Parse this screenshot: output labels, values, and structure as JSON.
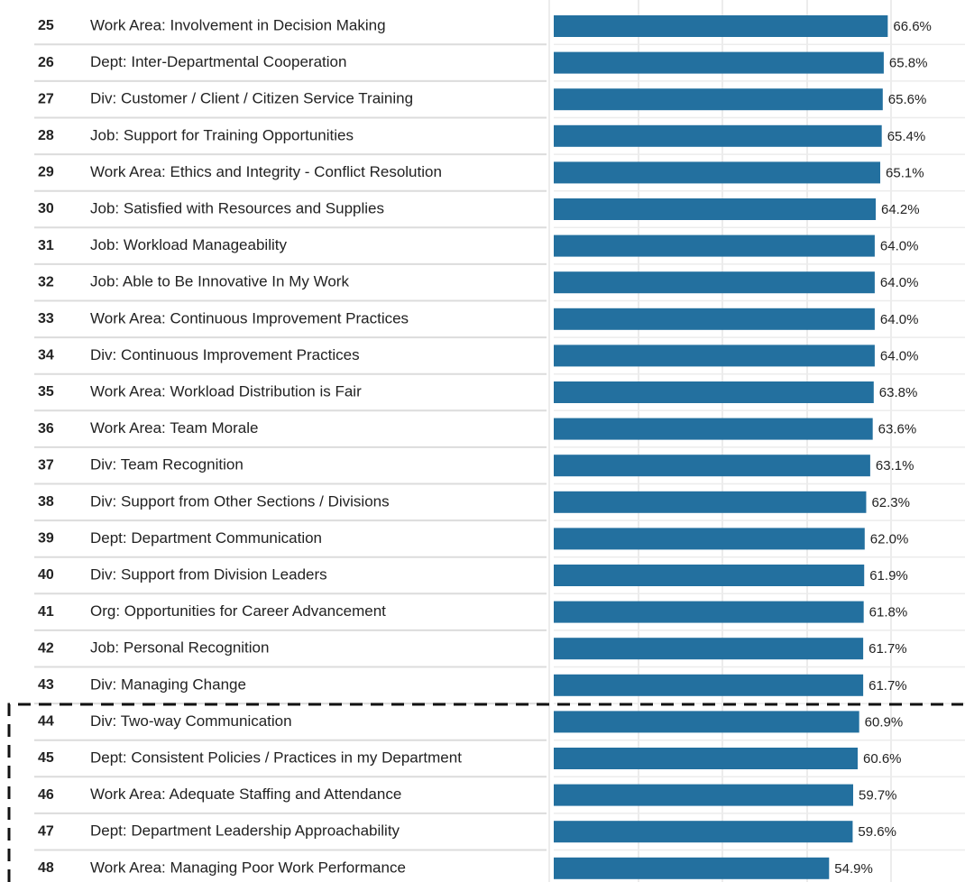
{
  "chart_data": {
    "type": "bar",
    "orientation": "horizontal",
    "color": "#23709f",
    "ranks": [
      "25",
      "26",
      "27",
      "28",
      "29",
      "30",
      "31",
      "32",
      "33",
      "34",
      "35",
      "36",
      "37",
      "38",
      "39",
      "40",
      "41",
      "42",
      "43",
      "44",
      "45",
      "46",
      "47",
      "48"
    ],
    "categories": [
      "Work Area: Involvement in Decision Making",
      "Dept: Inter-Departmental Cooperation",
      "Div: Customer / Client / Citizen Service Training",
      "Job: Support for Training Opportunities",
      "Work Area: Ethics and Integrity - Conflict Resolution",
      "Job: Satisfied with Resources and Supplies",
      "Job: Workload Manageability",
      "Job: Able to Be Innovative In My Work",
      "Work Area: Continuous Improvement Practices",
      "Div: Continuous Improvement Practices",
      "Work Area: Workload Distribution is Fair",
      "Work Area: Team Morale",
      "Div: Team Recognition",
      "Div: Support from Other Sections / Divisions",
      "Dept: Department Communication",
      "Div: Support from Division Leaders",
      "Org: Opportunities for Career Advancement",
      "Job: Personal Recognition",
      "Div: Managing Change",
      "Div: Two-way Communication",
      "Dept: Consistent Policies / Practices in my Department",
      "Work Area: Adequate Staffing and Attendance",
      "Dept: Department Leadership Approachability",
      "Work Area: Managing Poor Work Performance"
    ],
    "values": [
      66.6,
      65.8,
      65.6,
      65.4,
      65.1,
      64.2,
      64.0,
      64.0,
      64.0,
      64.0,
      63.8,
      63.6,
      63.1,
      62.3,
      62.0,
      61.9,
      61.8,
      61.7,
      61.7,
      60.9,
      60.6,
      59.7,
      59.6,
      54.9
    ],
    "value_labels": [
      "66.6%",
      "65.8%",
      "65.6%",
      "65.4%",
      "65.1%",
      "64.2%",
      "64.0%",
      "64.0%",
      "64.0%",
      "64.0%",
      "63.8%",
      "63.6%",
      "63.1%",
      "62.3%",
      "62.0%",
      "61.9%",
      "61.8%",
      "61.7%",
      "61.7%",
      "60.9%",
      "60.6%",
      "59.7%",
      "59.6%",
      "54.9%"
    ],
    "xlim": [
      0,
      82
    ]
  }
}
